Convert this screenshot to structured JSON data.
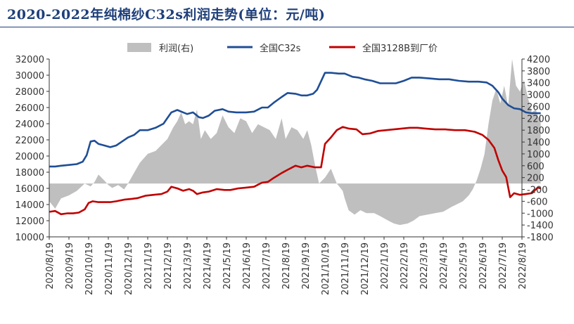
{
  "chart_data": {
    "type": "line",
    "title": "2020-2022年纯棉纱C32s利润走势(单位：元/吨)",
    "colors": {
      "title": "#1f3f7a",
      "profit": "#bfbfbf",
      "c32s": "#1f4e96",
      "price3128": "#c00000",
      "axis": "#333333"
    },
    "legend": {
      "placement": "top-center"
    },
    "x": [
      "2020/8/19",
      "2020/9/19",
      "2020/10/19",
      "2020/11/19",
      "2020/12/19",
      "2021/1/19",
      "2021/2/19",
      "2021/3/19",
      "2021/4/19",
      "2021/5/19",
      "2021/6/19",
      "2021/7/19",
      "2021/8/19",
      "2021/9/19",
      "2021/10/19",
      "2021/11/19",
      "2021/12/19",
      "2022/1/19",
      "2022/2/19",
      "2022/3/19",
      "2022/4/19",
      "2022/5/19",
      "2022/6/19",
      "2022/7/19",
      "2022/8/19"
    ],
    "y_left": {
      "min": 10000,
      "max": 32000,
      "step": 2000,
      "ticks": [
        "10000",
        "12000",
        "14000",
        "16000",
        "18000",
        "20000",
        "22000",
        "24000",
        "26000",
        "28000",
        "30000",
        "32000"
      ]
    },
    "y_right": {
      "min": -1800,
      "max": 4200,
      "step": 400,
      "ticks": [
        "-1800",
        "-1400",
        "-1000",
        "-600",
        "-200",
        "200",
        "600",
        "1000",
        "1400",
        "1800",
        "2200",
        "2600",
        "3000",
        "3400",
        "3800",
        "4200"
      ]
    },
    "grid": false,
    "series": [
      {
        "name": "利润(右)",
        "type": "area",
        "axis": "right",
        "points": [
          [
            0,
            -600
          ],
          [
            0.3,
            -850
          ],
          [
            0.6,
            -500
          ],
          [
            1,
            -400
          ],
          [
            1.4,
            -250
          ],
          [
            1.8,
            0
          ],
          [
            2.1,
            -100
          ],
          [
            2.3,
            50
          ],
          [
            2.5,
            300
          ],
          [
            2.8,
            100
          ],
          [
            3,
            -50
          ],
          [
            3.2,
            -150
          ],
          [
            3.5,
            -50
          ],
          [
            3.8,
            -200
          ],
          [
            4.0,
            0
          ],
          [
            4.3,
            350
          ],
          [
            4.6,
            700
          ],
          [
            5,
            1000
          ],
          [
            5.4,
            1100
          ],
          [
            5.7,
            1300
          ],
          [
            6.0,
            1500
          ],
          [
            6.3,
            1900
          ],
          [
            6.5,
            2100
          ],
          [
            6.7,
            2400
          ],
          [
            6.9,
            2000
          ],
          [
            7.1,
            2100
          ],
          [
            7.3,
            2000
          ],
          [
            7.5,
            2500
          ],
          [
            7.7,
            1500
          ],
          [
            7.9,
            1800
          ],
          [
            8.2,
            1500
          ],
          [
            8.5,
            1700
          ],
          [
            8.8,
            2300
          ],
          [
            9.1,
            1900
          ],
          [
            9.4,
            1700
          ],
          [
            9.7,
            2200
          ],
          [
            10,
            2100
          ],
          [
            10.3,
            1700
          ],
          [
            10.6,
            2000
          ],
          [
            10.9,
            1900
          ],
          [
            11.2,
            1800
          ],
          [
            11.5,
            1500
          ],
          [
            11.8,
            2200
          ],
          [
            12.0,
            1500
          ],
          [
            12.3,
            1900
          ],
          [
            12.6,
            1800
          ],
          [
            12.9,
            1500
          ],
          [
            13.1,
            1800
          ],
          [
            13.3,
            1300
          ],
          [
            13.5,
            600
          ],
          [
            13.7,
            0
          ],
          [
            14.0,
            200
          ],
          [
            14.3,
            500
          ],
          [
            14.6,
            0
          ],
          [
            14.9,
            -250
          ],
          [
            15.0,
            -500
          ],
          [
            15.2,
            -900
          ],
          [
            15.5,
            -1050
          ],
          [
            15.8,
            -900
          ],
          [
            16.1,
            -1000
          ],
          [
            16.5,
            -1000
          ],
          [
            16.8,
            -1100
          ],
          [
            17.2,
            -1250
          ],
          [
            17.5,
            -1350
          ],
          [
            17.8,
            -1400
          ],
          [
            18.2,
            -1350
          ],
          [
            18.5,
            -1250
          ],
          [
            18.8,
            -1100
          ],
          [
            19.2,
            -1050
          ],
          [
            19.6,
            -1000
          ],
          [
            20,
            -950
          ],
          [
            20.4,
            -800
          ],
          [
            20.7,
            -700
          ],
          [
            21.0,
            -600
          ],
          [
            21.3,
            -400
          ],
          [
            21.5,
            -200
          ],
          [
            21.7,
            100
          ],
          [
            21.9,
            500
          ],
          [
            22.1,
            1000
          ],
          [
            22.3,
            2000
          ],
          [
            22.5,
            2800
          ],
          [
            22.7,
            3200
          ],
          [
            22.9,
            2700
          ],
          [
            23.1,
            3300
          ],
          [
            23.3,
            2600
          ],
          [
            23.5,
            4200
          ],
          [
            23.7,
            3300
          ],
          [
            23.9,
            3100
          ],
          [
            24.1,
            3500
          ],
          [
            24.3,
            2900
          ],
          [
            24.5,
            2400
          ],
          [
            24.7,
            2500
          ],
          [
            24.85,
            2200
          ],
          [
            24.95,
            2400
          ]
        ]
      },
      {
        "name": "全国C32s",
        "type": "line",
        "axis": "left",
        "points": [
          [
            0,
            18700
          ],
          [
            0.3,
            18700
          ],
          [
            0.6,
            18800
          ],
          [
            1,
            18900
          ],
          [
            1.4,
            19000
          ],
          [
            1.7,
            19300
          ],
          [
            1.9,
            20100
          ],
          [
            2.1,
            21800
          ],
          [
            2.3,
            21900
          ],
          [
            2.5,
            21500
          ],
          [
            2.8,
            21300
          ],
          [
            3.1,
            21100
          ],
          [
            3.4,
            21300
          ],
          [
            3.7,
            21800
          ],
          [
            4.0,
            22300
          ],
          [
            4.3,
            22600
          ],
          [
            4.6,
            23200
          ],
          [
            5.0,
            23200
          ],
          [
            5.4,
            23500
          ],
          [
            5.8,
            24000
          ],
          [
            6.0,
            24700
          ],
          [
            6.2,
            25400
          ],
          [
            6.5,
            25700
          ],
          [
            6.8,
            25400
          ],
          [
            7.0,
            25200
          ],
          [
            7.3,
            25400
          ],
          [
            7.6,
            24800
          ],
          [
            7.8,
            24700
          ],
          [
            8.1,
            25000
          ],
          [
            8.4,
            25600
          ],
          [
            8.8,
            25800
          ],
          [
            9.1,
            25500
          ],
          [
            9.5,
            25400
          ],
          [
            10,
            25400
          ],
          [
            10.4,
            25500
          ],
          [
            10.8,
            26000
          ],
          [
            11.1,
            26000
          ],
          [
            11.4,
            26600
          ],
          [
            11.8,
            27300
          ],
          [
            12.1,
            27800
          ],
          [
            12.5,
            27700
          ],
          [
            12.8,
            27500
          ],
          [
            13.1,
            27500
          ],
          [
            13.4,
            27700
          ],
          [
            13.6,
            28200
          ],
          [
            14.0,
            30300
          ],
          [
            14.3,
            30300
          ],
          [
            14.7,
            30200
          ],
          [
            15.0,
            30200
          ],
          [
            15.4,
            29800
          ],
          [
            15.7,
            29700
          ],
          [
            16.0,
            29500
          ],
          [
            16.4,
            29300
          ],
          [
            16.8,
            29000
          ],
          [
            17.2,
            29000
          ],
          [
            17.6,
            29000
          ],
          [
            18.0,
            29300
          ],
          [
            18.4,
            29700
          ],
          [
            18.8,
            29700
          ],
          [
            19.3,
            29600
          ],
          [
            19.8,
            29500
          ],
          [
            20.3,
            29500
          ],
          [
            20.8,
            29300
          ],
          [
            21.3,
            29200
          ],
          [
            21.8,
            29200
          ],
          [
            22.2,
            29100
          ],
          [
            22.5,
            28700
          ],
          [
            22.8,
            27900
          ],
          [
            23.0,
            27100
          ],
          [
            23.3,
            26300
          ],
          [
            23.6,
            25900
          ],
          [
            23.9,
            25800
          ],
          [
            24.2,
            25400
          ],
          [
            24.5,
            25300
          ],
          [
            24.8,
            25300
          ],
          [
            24.95,
            25300
          ]
        ]
      },
      {
        "name": "全国3128B到厂价",
        "type": "line",
        "axis": "left",
        "points": [
          [
            0,
            13100
          ],
          [
            0.3,
            13200
          ],
          [
            0.6,
            12800
          ],
          [
            0.9,
            12900
          ],
          [
            1.2,
            12900
          ],
          [
            1.5,
            13000
          ],
          [
            1.8,
            13400
          ],
          [
            2.0,
            14200
          ],
          [
            2.2,
            14400
          ],
          [
            2.5,
            14300
          ],
          [
            2.8,
            14300
          ],
          [
            3.1,
            14300
          ],
          [
            3.4,
            14400
          ],
          [
            3.8,
            14600
          ],
          [
            4.2,
            14700
          ],
          [
            4.5,
            14800
          ],
          [
            4.9,
            15100
          ],
          [
            5.3,
            15200
          ],
          [
            5.7,
            15300
          ],
          [
            6.0,
            15600
          ],
          [
            6.2,
            16200
          ],
          [
            6.5,
            16000
          ],
          [
            6.8,
            15700
          ],
          [
            7.1,
            15900
          ],
          [
            7.3,
            15700
          ],
          [
            7.5,
            15300
          ],
          [
            7.8,
            15500
          ],
          [
            8.1,
            15600
          ],
          [
            8.5,
            15900
          ],
          [
            8.9,
            15800
          ],
          [
            9.2,
            15800
          ],
          [
            9.6,
            16000
          ],
          [
            10,
            16100
          ],
          [
            10.4,
            16200
          ],
          [
            10.8,
            16700
          ],
          [
            11.1,
            16800
          ],
          [
            11.4,
            17300
          ],
          [
            11.8,
            17900
          ],
          [
            12.1,
            18300
          ],
          [
            12.5,
            18800
          ],
          [
            12.8,
            18600
          ],
          [
            13.1,
            18800
          ],
          [
            13.5,
            18600
          ],
          [
            13.8,
            18600
          ],
          [
            14.0,
            21500
          ],
          [
            14.3,
            22300
          ],
          [
            14.6,
            23200
          ],
          [
            14.9,
            23600
          ],
          [
            15.2,
            23400
          ],
          [
            15.6,
            23300
          ],
          [
            15.9,
            22700
          ],
          [
            16.3,
            22800
          ],
          [
            16.7,
            23100
          ],
          [
            17.1,
            23200
          ],
          [
            17.5,
            23300
          ],
          [
            17.9,
            23400
          ],
          [
            18.3,
            23500
          ],
          [
            18.7,
            23500
          ],
          [
            19.1,
            23400
          ],
          [
            19.6,
            23300
          ],
          [
            20.1,
            23300
          ],
          [
            20.6,
            23200
          ],
          [
            21.1,
            23200
          ],
          [
            21.6,
            23000
          ],
          [
            22.0,
            22600
          ],
          [
            22.3,
            22000
          ],
          [
            22.6,
            21000
          ],
          [
            22.8,
            19500
          ],
          [
            23.0,
            18200
          ],
          [
            23.2,
            17400
          ],
          [
            23.4,
            14900
          ],
          [
            23.6,
            15400
          ],
          [
            23.9,
            15200
          ],
          [
            24.2,
            15300
          ],
          [
            24.5,
            15400
          ],
          [
            24.8,
            16100
          ],
          [
            24.95,
            16000
          ]
        ]
      }
    ]
  }
}
